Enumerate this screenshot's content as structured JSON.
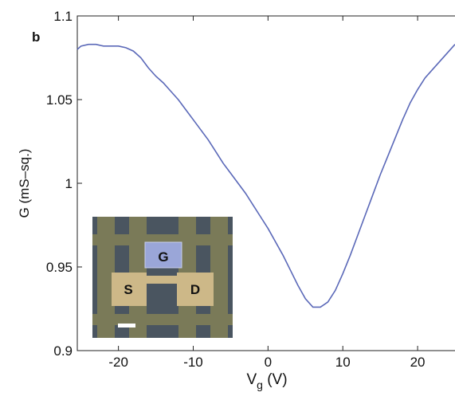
{
  "chart_data": {
    "type": "line",
    "panel_label": "b",
    "xlabel": [
      "V",
      "g",
      " (V)"
    ],
    "ylabel": "G (mS–sq.)",
    "x": [
      -25.5,
      -25,
      -24,
      -23,
      -22,
      -21,
      -20,
      -19,
      -18,
      -17,
      -16,
      -15,
      -14,
      -13,
      -12,
      -11,
      -10,
      -9,
      -8,
      -7,
      -6,
      -5,
      -4,
      -3,
      -2,
      -1,
      0,
      1,
      2,
      3,
      4,
      5,
      6,
      7,
      8,
      9,
      10,
      11,
      12,
      13,
      14,
      15,
      16,
      17,
      18,
      19,
      20,
      21,
      22,
      23,
      24,
      25
    ],
    "series": [
      {
        "color": "#5a68b8",
        "values": [
          1.08,
          1.082,
          1.083,
          1.083,
          1.082,
          1.082,
          1.082,
          1.081,
          1.079,
          1.075,
          1.069,
          1.064,
          1.06,
          1.055,
          1.05,
          1.044,
          1.038,
          1.032,
          1.026,
          1.019,
          1.012,
          1.006,
          1.0,
          0.994,
          0.987,
          0.98,
          0.973,
          0.965,
          0.957,
          0.948,
          0.939,
          0.931,
          0.926,
          0.926,
          0.929,
          0.936,
          0.946,
          0.957,
          0.969,
          0.981,
          0.993,
          1.005,
          1.016,
          1.027,
          1.038,
          1.048,
          1.056,
          1.063,
          1.068,
          1.073,
          1.078,
          1.083
        ]
      }
    ],
    "xlim": [
      -25.5,
      25
    ],
    "ylim": [
      0.9,
      1.1
    ],
    "xticks": [
      -20,
      -10,
      0,
      10,
      20
    ],
    "yticks": [
      0.9,
      0.95,
      1,
      1.05,
      1.1
    ],
    "inset": {
      "labels": [
        "G",
        "S",
        "D"
      ]
    }
  }
}
